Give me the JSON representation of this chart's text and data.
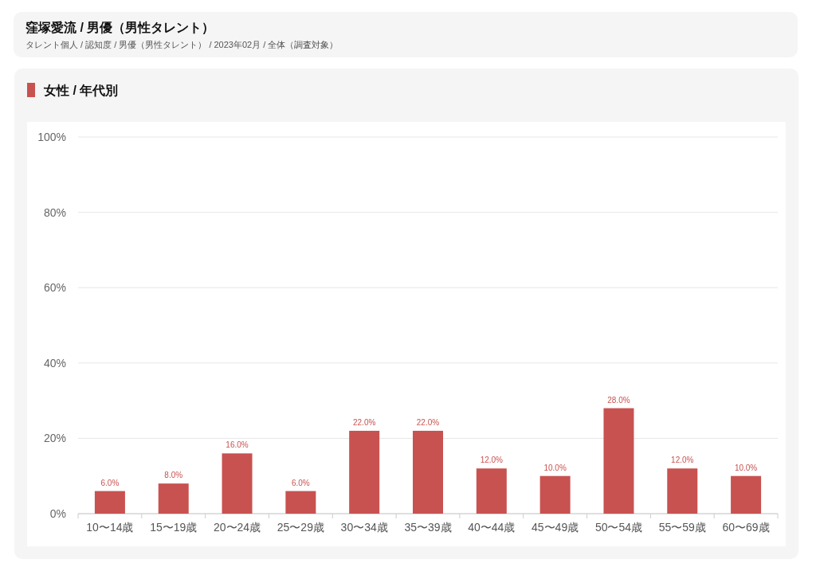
{
  "chart_data": {
    "type": "bar",
    "title": "窪塚愛流 / 男優（男性タレント）",
    "subtitle": "タレント個人 / 認知度 / 男優（男性タレント） / 2023年02月 / 全体（調査対象）",
    "annotations": [
      "女性 / 年代別"
    ],
    "categories": [
      "10〜14歳",
      "15〜19歳",
      "20〜24歳",
      "25〜29歳",
      "30〜34歳",
      "35〜39歳",
      "40〜44歳",
      "45〜49歳",
      "50〜54歳",
      "55〜59歳",
      "60〜69歳"
    ],
    "values": [
      6,
      8,
      16,
      6,
      22,
      22,
      12,
      10,
      28,
      12,
      10
    ],
    "value_labels": [
      "6.0%",
      "8.0%",
      "16.0%",
      "6.0%",
      "22.0%",
      "22.0%",
      "12.0%",
      "10.0%",
      "28.0%",
      "12.0%",
      "10.0%"
    ],
    "color": "#c85250",
    "ylim": [
      0,
      100
    ],
    "yticks": [
      {
        "value": 0,
        "label": "0%"
      },
      {
        "value": 20,
        "label": "20%"
      },
      {
        "value": 40,
        "label": "40%"
      },
      {
        "value": 60,
        "label": "60%"
      },
      {
        "value": 80,
        "label": "80%"
      },
      {
        "value": 100,
        "label": "100%"
      }
    ],
    "grid": "y"
  }
}
